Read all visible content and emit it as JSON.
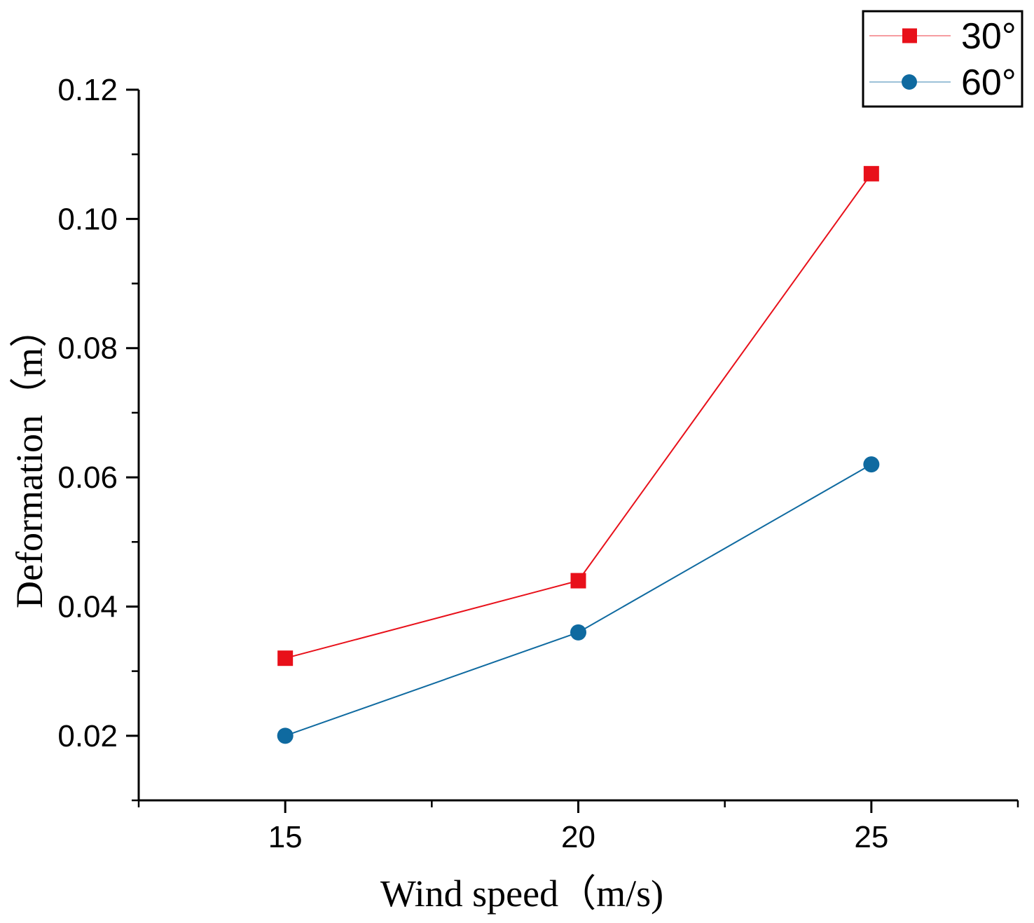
{
  "chart_data": {
    "type": "line",
    "title": "",
    "xlabel": "Wind speed（m/s)",
    "ylabel": "Deformation（m）",
    "x": [
      15,
      20,
      25
    ],
    "xlim": [
      12.5,
      27.5
    ],
    "ylim": [
      0.01,
      0.12
    ],
    "xticks": [
      "15",
      "20",
      "25"
    ],
    "yticks": [
      "0.02",
      "0.04",
      "0.06",
      "0.08",
      "0.10",
      "0.12"
    ],
    "grid": false,
    "legend_position": "top-right",
    "series": [
      {
        "name": "30°",
        "values": [
          0.032,
          0.044,
          0.107
        ],
        "color": "#e8101a",
        "marker": "square"
      },
      {
        "name": "60°",
        "values": [
          0.02,
          0.036,
          0.062
        ],
        "color": "#0f6aa0",
        "marker": "circle"
      }
    ]
  }
}
